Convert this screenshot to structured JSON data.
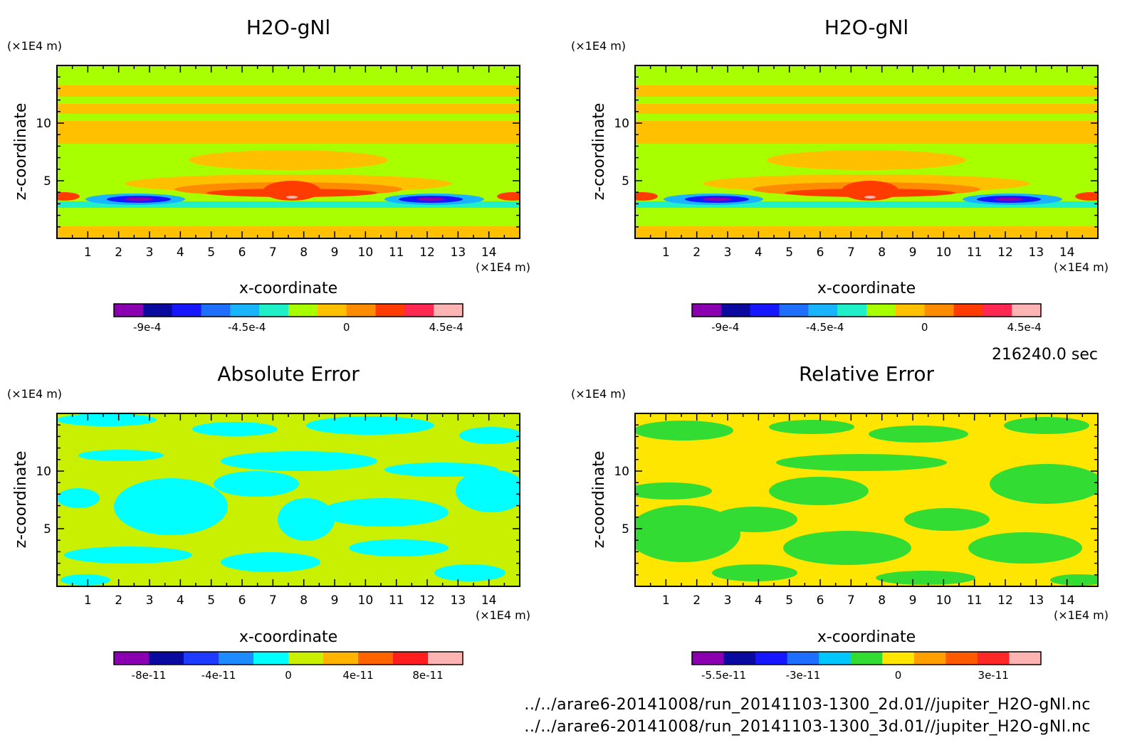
{
  "colors": {
    "field_levels": [
      "#8a00b0",
      "#0a0aa0",
      "#1616ff",
      "#1e6eff",
      "#18b4ff",
      "#20f0c8",
      "#a8ff00",
      "#ffc000",
      "#ff8c00",
      "#ff3c00",
      "#ff2850",
      "#ffb4b4"
    ],
    "abs_levels": [
      "#8a00b0",
      "#0a0aa0",
      "#1e3cff",
      "#1e8cff",
      "#00ffff",
      "#c8f000",
      "#ffb400",
      "#ff6400",
      "#ff1e1e",
      "#ffb4b4"
    ],
    "rel_levels": [
      "#8a00b0",
      "#0a0aa0",
      "#1616ff",
      "#1e6eff",
      "#00c8ff",
      "#32dc32",
      "#ffe600",
      "#ffa000",
      "#ff5a00",
      "#ff2828",
      "#ffb4b4"
    ]
  },
  "chart_data": [
    {
      "type": "heatmap",
      "title": "H2O-gNl",
      "xlabel": "x-coordinate",
      "ylabel": "z-coordinate",
      "x_unit": "(×1E4 m)",
      "z_unit": "(×1E4 m)",
      "xlim": [
        0,
        15
      ],
      "ylim": [
        0,
        15
      ],
      "x_ticks": [
        "1",
        "2",
        "3",
        "4",
        "5",
        "6",
        "7",
        "8",
        "9",
        "10",
        "11",
        "12",
        "13",
        "14"
      ],
      "z_ticks": [
        "5",
        "10"
      ],
      "colorbar_labels": [
        "-9e-4",
        "-4.5e-4",
        "0",
        "4.5e-4"
      ],
      "colorbar_values": [
        -0.0009,
        -0.00045,
        0,
        0.00045
      ],
      "colorbar_range": [
        -0.00105,
        0.000525
      ],
      "palette": "field_levels"
    },
    {
      "type": "heatmap",
      "title": "H2O-gNl",
      "xlabel": "x-coordinate",
      "ylabel": "z-coordinate",
      "x_unit": "(×1E4 m)",
      "z_unit": "(×1E4 m)",
      "xlim": [
        0,
        15
      ],
      "ylim": [
        0,
        15
      ],
      "x_ticks": [
        "1",
        "2",
        "3",
        "4",
        "5",
        "6",
        "7",
        "8",
        "9",
        "10",
        "11",
        "12",
        "13",
        "14"
      ],
      "z_ticks": [
        "5",
        "10"
      ],
      "colorbar_labels": [
        "-9e-4",
        "-4.5e-4",
        "0",
        "4.5e-4"
      ],
      "colorbar_values": [
        -0.0009,
        -0.00045,
        0,
        0.00045
      ],
      "colorbar_range": [
        -0.00105,
        0.000525
      ],
      "palette": "field_levels"
    },
    {
      "type": "heatmap",
      "title": "Absolute Error",
      "xlabel": "x-coordinate",
      "ylabel": "z-coordinate",
      "x_unit": "(×1E4 m)",
      "z_unit": "(×1E4 m)",
      "xlim": [
        0,
        15
      ],
      "ylim": [
        0,
        15
      ],
      "x_ticks": [
        "1",
        "2",
        "3",
        "4",
        "5",
        "6",
        "7",
        "8",
        "9",
        "10",
        "11",
        "12",
        "13",
        "14"
      ],
      "z_ticks": [
        "5",
        "10"
      ],
      "colorbar_labels": [
        "-8e-11",
        "-4e-11",
        "0",
        "4e-11",
        "8e-11"
      ],
      "colorbar_values": [
        -8e-11,
        -4e-11,
        0,
        4e-11,
        8e-11
      ],
      "colorbar_range": [
        -1e-10,
        1e-10
      ],
      "palette": "abs_levels"
    },
    {
      "type": "heatmap",
      "title": "Relative Error",
      "xlabel": "x-coordinate",
      "ylabel": "z-coordinate",
      "x_unit": "(×1E4 m)",
      "z_unit": "(×1E4 m)",
      "xlim": [
        0,
        15
      ],
      "ylim": [
        0,
        15
      ],
      "x_ticks": [
        "1",
        "2",
        "3",
        "4",
        "5",
        "6",
        "7",
        "8",
        "9",
        "10",
        "11",
        "12",
        "13",
        "14"
      ],
      "z_ticks": [
        "5",
        "10"
      ],
      "colorbar_labels": [
        "-5.5e-11",
        "-3e-11",
        "0",
        "3e-11"
      ],
      "colorbar_values": [
        -5.5e-11,
        -3e-11,
        0,
        3e-11
      ],
      "colorbar_range": [
        -6.5e-11,
        4.5e-11
      ],
      "palette": "rel_levels"
    }
  ],
  "time_label": "216240.0 sec",
  "footer": {
    "line1": "../../arare6-20141008/run_20141103-1300_2d.01//jupiter_H2O-gNl.nc",
    "line2": "../../arare6-20141008/run_20141103-1300_3d.01//jupiter_H2O-gNl.nc"
  }
}
